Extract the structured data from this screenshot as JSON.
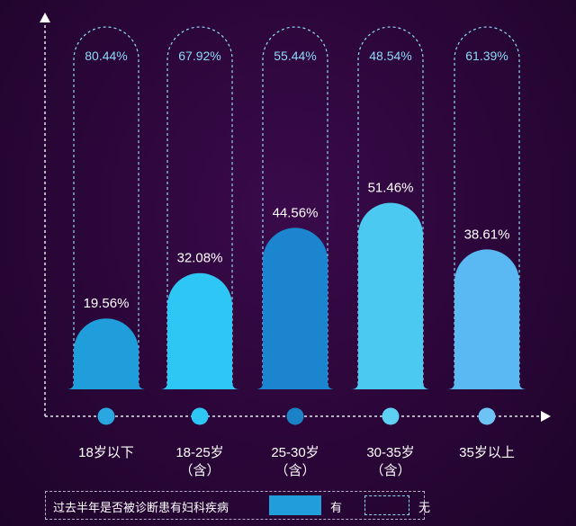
{
  "chart_data": {
    "type": "bar",
    "title": "",
    "xlabel": "",
    "ylabel": "",
    "ylim": [
      0,
      100
    ],
    "categories": [
      "18岁以下",
      "18-25岁（含）",
      "25-30岁（含）",
      "30-35岁（含）",
      "35岁以上"
    ],
    "category_lines": [
      [
        "18岁以下"
      ],
      [
        "18-25岁",
        "（含）"
      ],
      [
        "25-30岁",
        "（含）"
      ],
      [
        "30-35岁",
        "（含）"
      ],
      [
        "35岁以上"
      ]
    ],
    "series": [
      {
        "name": "有",
        "values": [
          19.56,
          32.08,
          44.56,
          51.46,
          38.61
        ],
        "labels": [
          "19.56%",
          "32.08%",
          "44.56%",
          "51.46%",
          "38.61%"
        ],
        "style": "solid"
      },
      {
        "name": "无",
        "values": [
          80.44,
          67.92,
          55.44,
          48.54,
          61.39
        ],
        "labels": [
          "80.44%",
          "67.92%",
          "55.44%",
          "48.54%",
          "61.39%"
        ],
        "style": "dashed"
      }
    ],
    "colors": [
      "#1f9edb",
      "#2ec6f4",
      "#1b86cf",
      "#4cc9f1",
      "#5ab8f2"
    ],
    "dot_colors": [
      "#2aa6e0",
      "#2ec6f4",
      "#1b82c8",
      "#5dd0f4",
      "#6cc3f4"
    ],
    "dashed_color": "#8fd9f7",
    "legend": {
      "title": "过去半年是否被诊断患有妇科疾病",
      "yes_label": "有",
      "no_label": "无"
    }
  }
}
